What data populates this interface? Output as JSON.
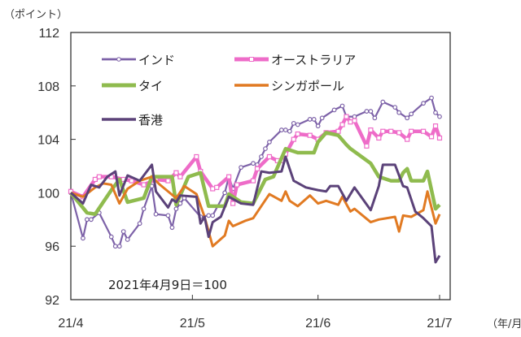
{
  "chart_data": {
    "type": "line",
    "ylabel": "（ポイント）",
    "xlabel": "（年/月）",
    "ylim": [
      92,
      112
    ],
    "yticks": [
      "92",
      "96",
      "100",
      "104",
      "108",
      "112"
    ],
    "xlim": [
      "2021-04-01",
      "2021-07-01"
    ],
    "xticks": [
      {
        "date": "2021-04-01",
        "label": "21/4"
      },
      {
        "date": "2021-05-01",
        "label": "21/5"
      },
      {
        "date": "2021-06-01",
        "label": "21/6"
      },
      {
        "date": "2021-07-01",
        "label": "21/7"
      }
    ],
    "annotation": "2021年4月9日＝100",
    "grid": false,
    "legend_position": "top-left",
    "series": [
      {
        "name": "インド",
        "color": "#7d62a8",
        "marker": "circle",
        "style": "thin",
        "x": [
          "04-01",
          "04-04",
          "04-05",
          "04-06",
          "04-08",
          "04-11",
          "04-12",
          "04-13",
          "04-14",
          "04-15",
          "04-18",
          "04-19",
          "04-21",
          "04-22",
          "04-25",
          "04-26",
          "04-27",
          "04-28",
          "04-29",
          "05-03",
          "05-05",
          "05-06",
          "05-09",
          "05-10",
          "05-11",
          "05-13",
          "05-16",
          "05-17",
          "05-18",
          "05-19",
          "05-20",
          "05-23",
          "05-24",
          "05-25",
          "05-26",
          "05-27",
          "05-30",
          "05-31",
          "06-01",
          "06-02",
          "06-05",
          "06-07",
          "06-08",
          "06-10",
          "06-13",
          "06-14",
          "06-15",
          "06-17",
          "06-20",
          "06-21",
          "06-23",
          "06-24",
          "06-27",
          "06-29",
          "06-30",
          "07-01"
        ],
        "y": [
          100,
          96.6,
          98.0,
          98.0,
          98.5,
          96.7,
          96.0,
          96.0,
          97.1,
          96.5,
          97.7,
          98.8,
          100.5,
          98.4,
          98.3,
          97.4,
          98.8,
          99.2,
          99.6,
          98.2,
          98.3,
          98.3,
          100.0,
          101.2,
          100.3,
          101.9,
          102.2,
          102.1,
          102.7,
          103.3,
          103.8,
          104.7,
          104.7,
          104.6,
          105.2,
          105.1,
          105.5,
          105.5,
          105.0,
          105.6,
          106.2,
          106.5,
          105.7,
          105.7,
          106.1,
          106.1,
          105.6,
          106.8,
          106.4,
          106.0,
          105.6,
          105.9,
          106.7,
          107.1,
          106.0,
          105.7
        ]
      },
      {
        "name": "オーストラリア",
        "color": "#ee6cc8",
        "marker": "square",
        "style": "thick",
        "x": [
          "04-01",
          "04-04",
          "04-07",
          "04-08",
          "04-11",
          "04-14",
          "04-16",
          "04-19",
          "04-22",
          "04-25",
          "04-27",
          "04-28",
          "05-02",
          "05-03",
          "05-06",
          "05-07",
          "05-10",
          "05-11",
          "05-12",
          "05-16",
          "05-17",
          "05-20",
          "05-22",
          "05-23",
          "05-24",
          "05-26",
          "05-27",
          "05-30",
          "06-01",
          "06-03",
          "06-06",
          "06-07",
          "06-08",
          "06-09",
          "06-10",
          "06-13",
          "06-14",
          "06-16",
          "06-17",
          "06-19",
          "06-21",
          "06-23",
          "06-24",
          "06-27",
          "06-29",
          "06-30",
          "07-01"
        ],
        "y": [
          100.1,
          99.7,
          101.0,
          101.2,
          101.2,
          101.0,
          100.9,
          100.6,
          101.0,
          100.9,
          101.5,
          101.2,
          102.7,
          101.6,
          100.3,
          100.4,
          101.2,
          99.2,
          100.6,
          100.9,
          101.8,
          102.7,
          102.4,
          102.4,
          102.9,
          104.0,
          104.4,
          104.3,
          104.0,
          104.5,
          104.6,
          105.1,
          105.7,
          105.3,
          105.4,
          103.5,
          104.7,
          104.1,
          104.6,
          104.6,
          104.5,
          104.0,
          104.6,
          104.6,
          104.2,
          105.0,
          104.1
        ]
      },
      {
        "name": "タイ",
        "color": "#8fbb4e",
        "marker": "none",
        "style": "thick",
        "x": [
          "04-01",
          "04-05",
          "04-07",
          "04-11",
          "04-13",
          "04-15",
          "04-19",
          "04-21",
          "04-26",
          "04-27",
          "04-30",
          "05-03",
          "05-05",
          "05-09",
          "05-10",
          "05-13",
          "05-16",
          "05-19",
          "05-21",
          "05-24",
          "05-27",
          "05-31",
          "06-01",
          "06-03",
          "06-06",
          "06-08",
          "06-09",
          "06-14",
          "06-16",
          "06-19",
          "06-21",
          "06-22",
          "06-23",
          "06-24",
          "06-27",
          "06-28",
          "06-30",
          "07-01"
        ],
        "y": [
          100,
          98.5,
          98.4,
          100.2,
          101.0,
          99.3,
          99.6,
          101.2,
          101.2,
          99.1,
          101.2,
          101.5,
          99.0,
          99.0,
          99.9,
          99.3,
          99.2,
          101.0,
          101.2,
          103.3,
          103.0,
          103.0,
          103.8,
          104.5,
          104.3,
          103.6,
          103.3,
          102.2,
          101.2,
          100.9,
          100.9,
          101.5,
          101.8,
          100.9,
          100.9,
          101.6,
          98.8,
          99.1
        ]
      },
      {
        "name": "シンガポール",
        "color": "#e17a22",
        "marker": "none",
        "style": "medium",
        "x": [
          "04-01",
          "04-04",
          "04-07",
          "04-09",
          "04-11",
          "04-13",
          "04-15",
          "04-18",
          "04-21",
          "04-23",
          "04-27",
          "04-29",
          "05-02",
          "05-04",
          "05-06",
          "05-09",
          "05-10",
          "05-11",
          "05-14",
          "05-16",
          "05-18",
          "05-20",
          "05-23",
          "05-24",
          "05-25",
          "05-27",
          "05-30",
          "06-01",
          "06-03",
          "06-06",
          "06-07",
          "06-09",
          "06-10",
          "06-14",
          "06-16",
          "06-20",
          "06-21",
          "06-22",
          "06-24",
          "06-27",
          "06-28",
          "06-30",
          "07-01"
        ],
        "y": [
          100,
          99.7,
          100.4,
          100.7,
          100.6,
          99.2,
          100.3,
          100.9,
          101.2,
          100.6,
          99.6,
          100.5,
          99.9,
          98.2,
          96.0,
          96.8,
          97.9,
          97.5,
          97.9,
          98.1,
          99.0,
          99.9,
          99.4,
          100.1,
          99.4,
          99.0,
          99.8,
          99.2,
          99.4,
          99.1,
          99.7,
          98.6,
          98.8,
          97.8,
          98.0,
          98.2,
          97.1,
          98.3,
          98.2,
          98.7,
          100.1,
          97.7,
          98.4
        ]
      },
      {
        "name": "香港",
        "color": "#5b4279",
        "marker": "none",
        "style": "medium",
        "x": [
          "04-01",
          "04-04",
          "04-06",
          "04-08",
          "04-10",
          "04-12",
          "04-13",
          "04-15",
          "04-18",
          "04-21",
          "04-22",
          "04-25",
          "04-26",
          "04-27",
          "04-28",
          "05-02",
          "05-03",
          "05-04",
          "05-05",
          "05-06",
          "05-08",
          "05-10",
          "05-13",
          "05-16",
          "05-18",
          "05-20",
          "05-23",
          "05-24",
          "05-26",
          "05-29",
          "06-01",
          "06-03",
          "06-04",
          "06-06",
          "06-08",
          "06-10",
          "06-14",
          "06-16",
          "06-17",
          "06-20",
          "06-22",
          "06-23",
          "06-25",
          "06-27",
          "06-29",
          "06-30",
          "07-01"
        ],
        "y": [
          100,
          99.2,
          100.6,
          100.4,
          101.2,
          101.6,
          99.8,
          101.3,
          100.9,
          102.1,
          100.1,
          98.9,
          99.5,
          99.3,
          99.8,
          99.7,
          97.7,
          98.2,
          96.7,
          97.8,
          98.2,
          99.7,
          99.2,
          99.1,
          101.6,
          101.5,
          101.6,
          102.7,
          100.9,
          100.4,
          100.2,
          100.1,
          100.5,
          100.5,
          99.4,
          100.4,
          98.7,
          100.5,
          102.1,
          102.1,
          100.5,
          100.4,
          98.6,
          98.1,
          97.5,
          94.8,
          95.3
        ]
      }
    ]
  }
}
